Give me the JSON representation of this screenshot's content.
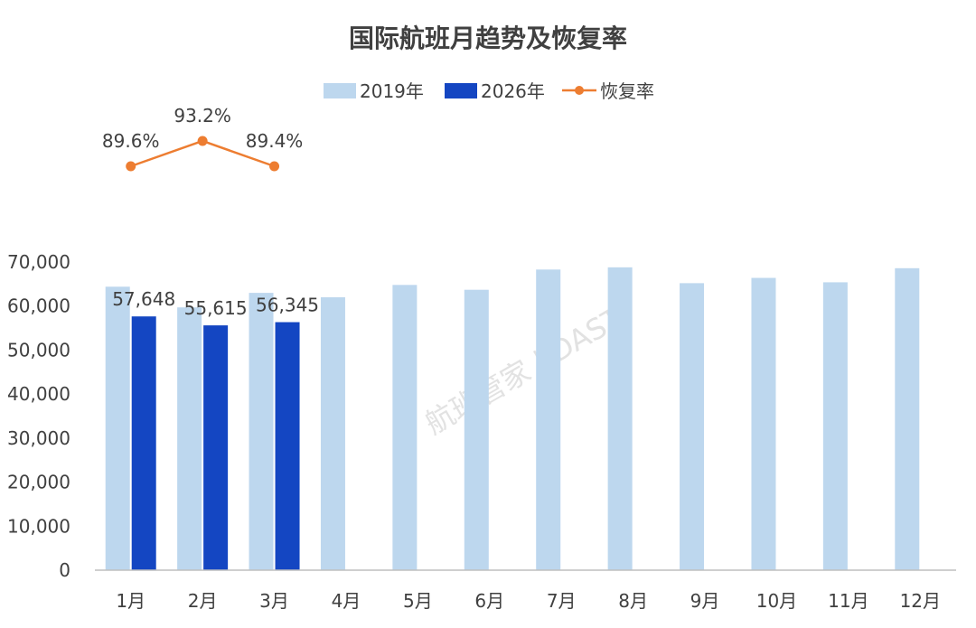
{
  "chart_data": {
    "type": "bar",
    "title": "国际航班月趋势及恢复率",
    "categories": [
      "1月",
      "2月",
      "3月",
      "4月",
      "5月",
      "6月",
      "7月",
      "8月",
      "9月",
      "10月",
      "11月",
      "12月"
    ],
    "series": [
      {
        "name": "2019年",
        "type": "bar",
        "color": "#bdd7ee",
        "values": [
          64400,
          59700,
          63000,
          62000,
          64800,
          63700,
          68300,
          68800,
          65200,
          66400,
          65400,
          68600
        ]
      },
      {
        "name": "2026年",
        "type": "bar",
        "color": "#1446c2",
        "values": [
          57648,
          55615,
          56345,
          null,
          null,
          null,
          null,
          null,
          null,
          null,
          null,
          null
        ],
        "labels": [
          "57,648",
          "55,615",
          "56,345"
        ]
      },
      {
        "name": "恢复率",
        "type": "line",
        "color": "#ed7d31",
        "values": [
          89.6,
          93.2,
          89.4,
          null,
          null,
          null,
          null,
          null,
          null,
          null,
          null,
          null
        ],
        "labels": [
          "89.6%",
          "93.2%",
          "89.4%"
        ]
      }
    ],
    "y_axis": {
      "min": 0,
      "max": 70000,
      "step": 10000,
      "tick_labels": [
        "0",
        "10,000",
        "20,000",
        "30,000",
        "40,000",
        "50,000",
        "60,000",
        "70,000"
      ]
    },
    "legend": "top-center",
    "grid": false,
    "watermark": "航班管家 | DAST"
  }
}
